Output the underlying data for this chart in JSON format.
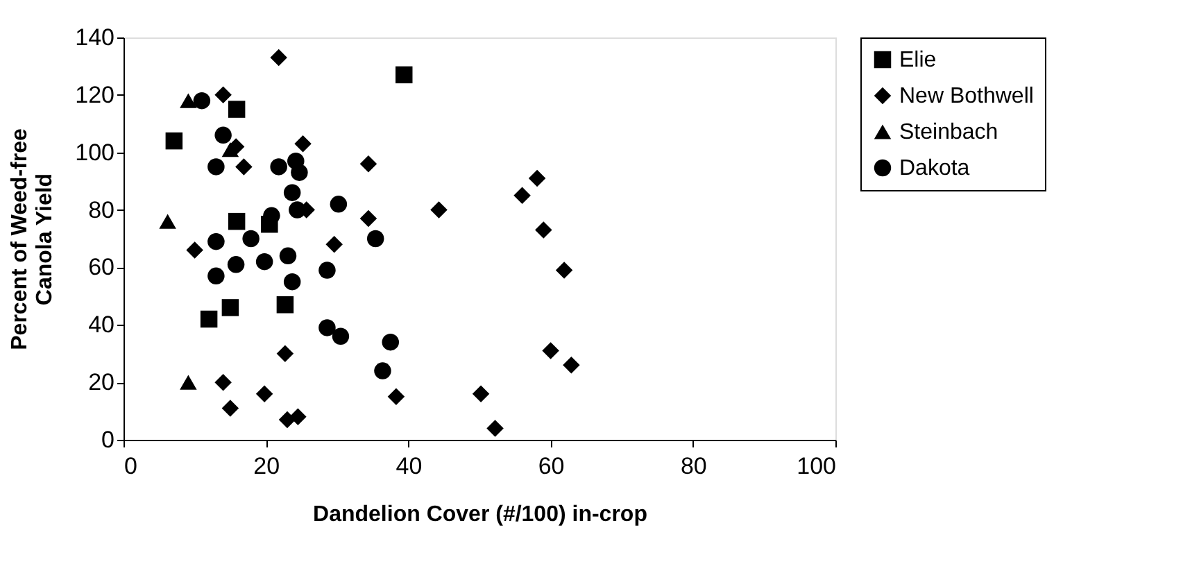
{
  "chart_data": {
    "type": "scatter",
    "xlabel": "Dandelion Cover (#/100) in-crop",
    "ylabel": "Percent of Weed-free\nCanola Yield",
    "xlim": [
      0,
      100
    ],
    "xticks": [
      0,
      20,
      40,
      60,
      80,
      100
    ],
    "ylim": [
      0,
      140
    ],
    "yticks": [
      0,
      20,
      40,
      60,
      80,
      100,
      120,
      140
    ],
    "grid": false,
    "legend": "right",
    "series": [
      {
        "name": "Elie",
        "color": "#000000",
        "marker": "square",
        "x": [
          7.1,
          15.9,
          15.9,
          20.5,
          15,
          12,
          22.7,
          39.4
        ],
        "values": [
          104,
          115,
          76,
          75,
          46,
          42,
          47,
          127
        ]
      },
      {
        "name": "New Bothwell",
        "color": "#000000",
        "marker": "diamond",
        "x": [
          21.8,
          14,
          15.8,
          16.9,
          10,
          22.7,
          14,
          19.8,
          15,
          23,
          24.5,
          25.2,
          34.4,
          25.7,
          34.4,
          44.3,
          29.6,
          38.3,
          58.1,
          56,
          59,
          61.9,
          60,
          62.9,
          50.2,
          52.2
        ],
        "values": [
          133,
          120,
          102,
          95,
          66,
          30,
          20,
          16,
          11,
          7,
          8,
          103,
          96,
          80,
          77,
          80,
          68,
          15,
          91,
          85,
          73,
          59,
          31,
          26,
          16,
          4
        ]
      },
      {
        "name": "Steinbach",
        "color": "#000000",
        "marker": "triangle",
        "x": [
          9.1,
          6.2,
          9.1,
          15
        ],
        "values": [
          118,
          76,
          20,
          101
        ]
      },
      {
        "name": "Dakota",
        "color": "#000000",
        "marker": "circle",
        "x": [
          11,
          14,
          13,
          21.8,
          13,
          13,
          15.8,
          17.9,
          20.8,
          19.8,
          24.2,
          24.7,
          23.7,
          24.4,
          30.2,
          35.4,
          23.1,
          23.7,
          28.6,
          28.6,
          30.5,
          37.5,
          36.4
        ],
        "values": [
          118,
          106,
          95,
          95,
          57,
          69,
          61,
          70,
          78,
          62,
          97,
          93,
          86,
          80,
          82,
          70,
          64,
          55,
          59,
          39,
          36,
          34,
          24
        ]
      }
    ]
  }
}
